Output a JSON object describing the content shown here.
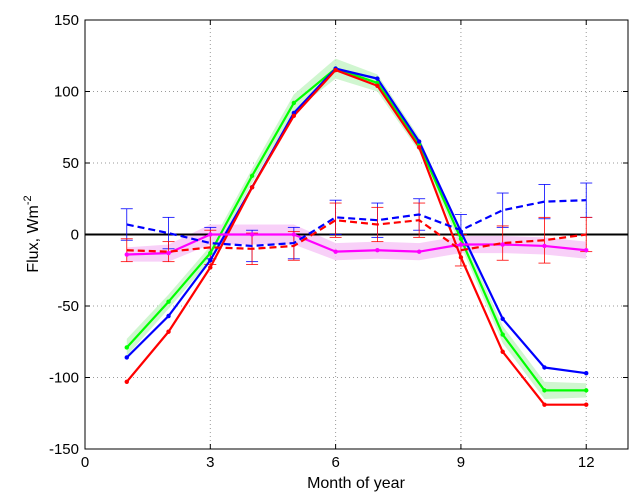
{
  "chart_data": {
    "type": "line",
    "xlabel": "Month of year",
    "ylabel_main": "Flux, Wm",
    "ylabel_sup": "-2",
    "xlim": [
      0,
      13
    ],
    "ylim": [
      -150,
      150
    ],
    "xticks": [
      0,
      3,
      6,
      9,
      12
    ],
    "yticks": [
      -150,
      -100,
      -50,
      0,
      50,
      100,
      150
    ],
    "xtick_labels": [
      "0",
      "3",
      "6",
      "9",
      "12"
    ],
    "ytick_labels": [
      "-150",
      "-100",
      "-50",
      "0",
      "50",
      "100",
      "150"
    ],
    "grid": true,
    "zero_line": true,
    "x": [
      1,
      2,
      3,
      4,
      5,
      6,
      7,
      8,
      9,
      10,
      11,
      12
    ],
    "series": [
      {
        "style": "solid",
        "color": "#00ff00",
        "band_color": "#c8f5c8",
        "markers": true,
        "values": [
          -79,
          -47,
          -13,
          41,
          92,
          116,
          106,
          63,
          -3,
          -70,
          -109,
          -109
        ],
        "band": [
          6,
          5,
          5,
          5,
          6,
          7,
          6,
          5,
          5,
          6,
          6,
          5
        ]
      },
      {
        "style": "solid",
        "color": "#0000ff",
        "markers": true,
        "values": [
          -86,
          -57,
          -18,
          33,
          85,
          116,
          109,
          65,
          2,
          -59,
          -93,
          -97
        ]
      },
      {
        "style": "solid",
        "color": "#ff0000",
        "markers": true,
        "values": [
          -103,
          -68,
          -23,
          33,
          83,
          115,
          104,
          61,
          -16,
          -82,
          -119,
          -119
        ]
      },
      {
        "style": "solid",
        "color": "#ff00ff",
        "band_color": "#f7c8f7",
        "markers": true,
        "values": [
          -14,
          -13,
          0,
          0,
          0,
          -12,
          -11,
          -12,
          -7,
          -7,
          -8,
          -11
        ],
        "band": [
          5,
          6,
          7,
          7,
          7,
          6,
          6,
          6,
          6,
          6,
          6,
          6
        ]
      },
      {
        "style": "dashed",
        "color": "#0000ff",
        "markers": false,
        "values": [
          7,
          1,
          -6,
          -8,
          -6,
          12,
          10,
          14,
          3,
          17,
          23,
          24
        ],
        "error": [
          11,
          11,
          11,
          11,
          11,
          12,
          12,
          11,
          11,
          12,
          12,
          12
        ]
      },
      {
        "style": "dashed",
        "color": "#ff0000",
        "markers": false,
        "values": [
          -11,
          -12,
          -9,
          -10,
          -8,
          10,
          7,
          10,
          -11,
          -6,
          -4,
          0
        ],
        "error": [
          8,
          7,
          12,
          11,
          10,
          12,
          12,
          12,
          11,
          12,
          16,
          12
        ]
      }
    ]
  }
}
